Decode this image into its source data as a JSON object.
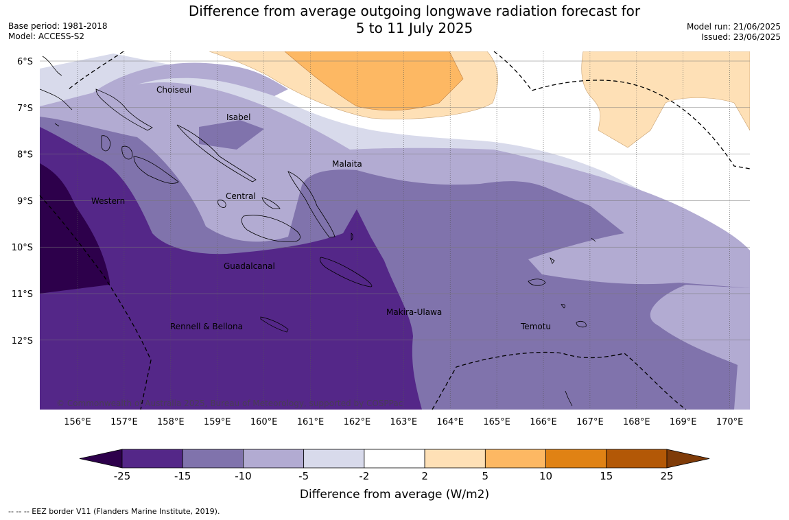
{
  "title": {
    "line1": "Difference from average outgoing longwave radiation forecast for",
    "line2": "5 to 11 July 2025"
  },
  "meta_left": {
    "base_period": "Base period: 1981-2018",
    "model": "Model: ACCESS-S2"
  },
  "meta_right": {
    "model_run": "Model run: 21/06/2025",
    "issued": "Issued: 23/06/2025"
  },
  "map": {
    "lat_labels": [
      "6°S",
      "7°S",
      "8°S",
      "9°S",
      "10°S",
      "11°S",
      "12°S"
    ],
    "lon_labels": [
      "156°E",
      "157°E",
      "158°E",
      "159°E",
      "160°E",
      "161°E",
      "162°E",
      "163°E",
      "164°E",
      "165°E",
      "166°E",
      "167°E",
      "168°E",
      "169°E",
      "170°E"
    ],
    "regions": [
      "Choiseul",
      "Isabel",
      "Malaita",
      "Western",
      "Central",
      "Guadalcanal",
      "Makira-Ulawa",
      "Rennell & Bellona",
      "Temotu"
    ],
    "copyright": "© Commonwealth of Australia 2025, Bureau of Meteorology, supported by COSPPac"
  },
  "colorbar": {
    "ticks": [
      "-25",
      "-15",
      "-10",
      "-5",
      "-2",
      "2",
      "5",
      "10",
      "15",
      "25"
    ],
    "label": "Difference from average (W/m2)",
    "colors": {
      "below": "#2d004b",
      "c1": "#542788",
      "c2": "#8073ac",
      "c3": "#b2abd2",
      "c4": "#d8daeb",
      "c5": "#ffffff",
      "c6": "#fee0b6",
      "c7": "#fdb863",
      "c8": "#e08214",
      "c9": "#b35806",
      "above": "#7f3b08"
    }
  },
  "footer": "--  --  -- EEZ border V11 (Flanders Marine Institute, 2019)."
}
